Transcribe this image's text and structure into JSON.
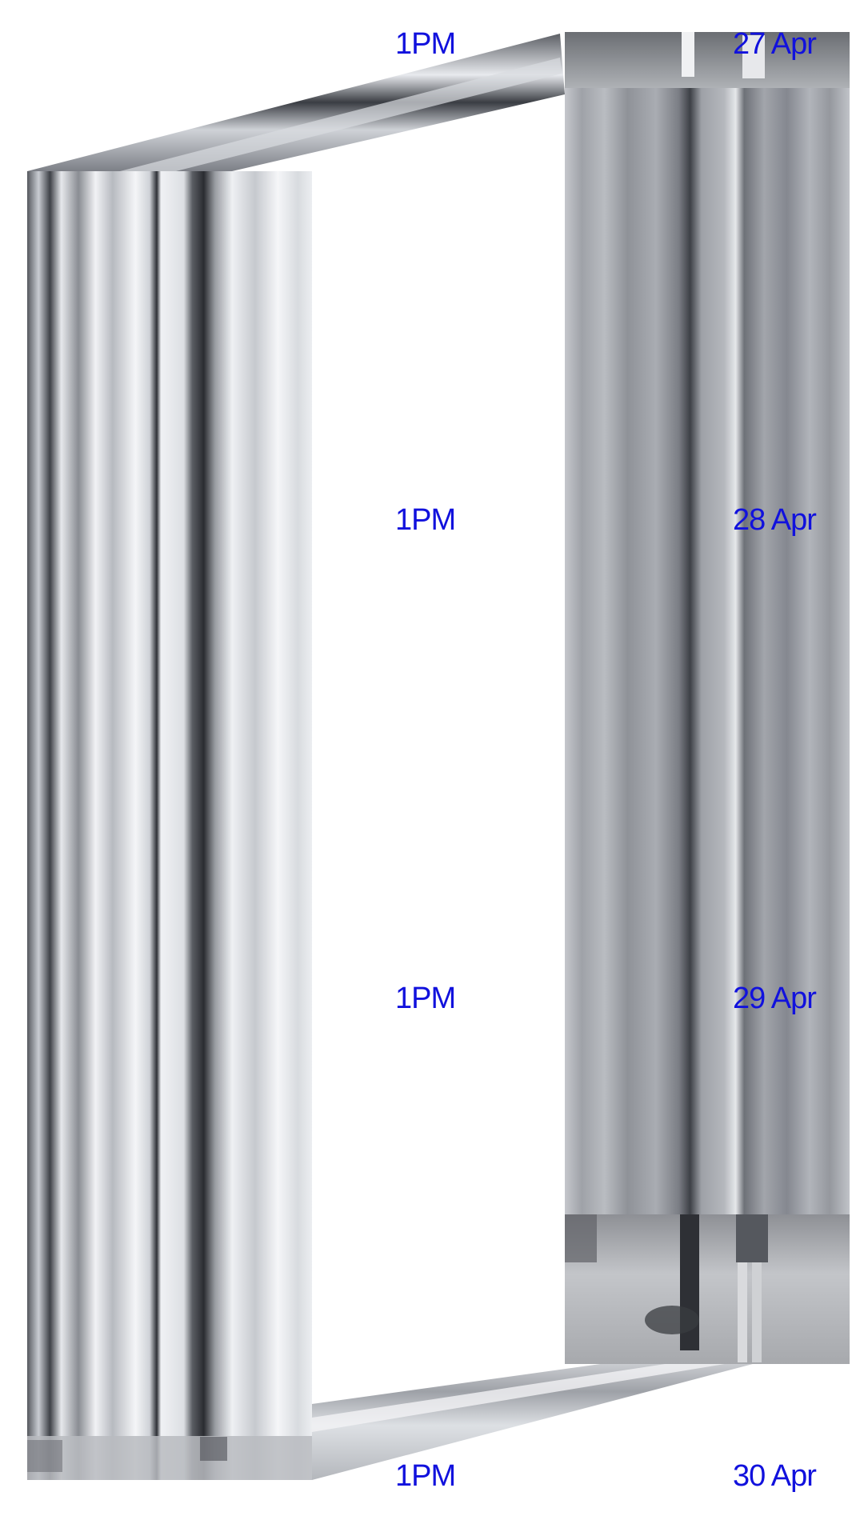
{
  "schedule": [
    {
      "time": "1PM",
      "date": "27 Apr"
    },
    {
      "time": "1PM",
      "date": "28 Apr"
    },
    {
      "time": "1PM",
      "date": "29 Apr"
    },
    {
      "time": "1PM",
      "date": "30 Apr"
    }
  ],
  "colors": {
    "text": "#1111dd",
    "background": "#ffffff"
  }
}
